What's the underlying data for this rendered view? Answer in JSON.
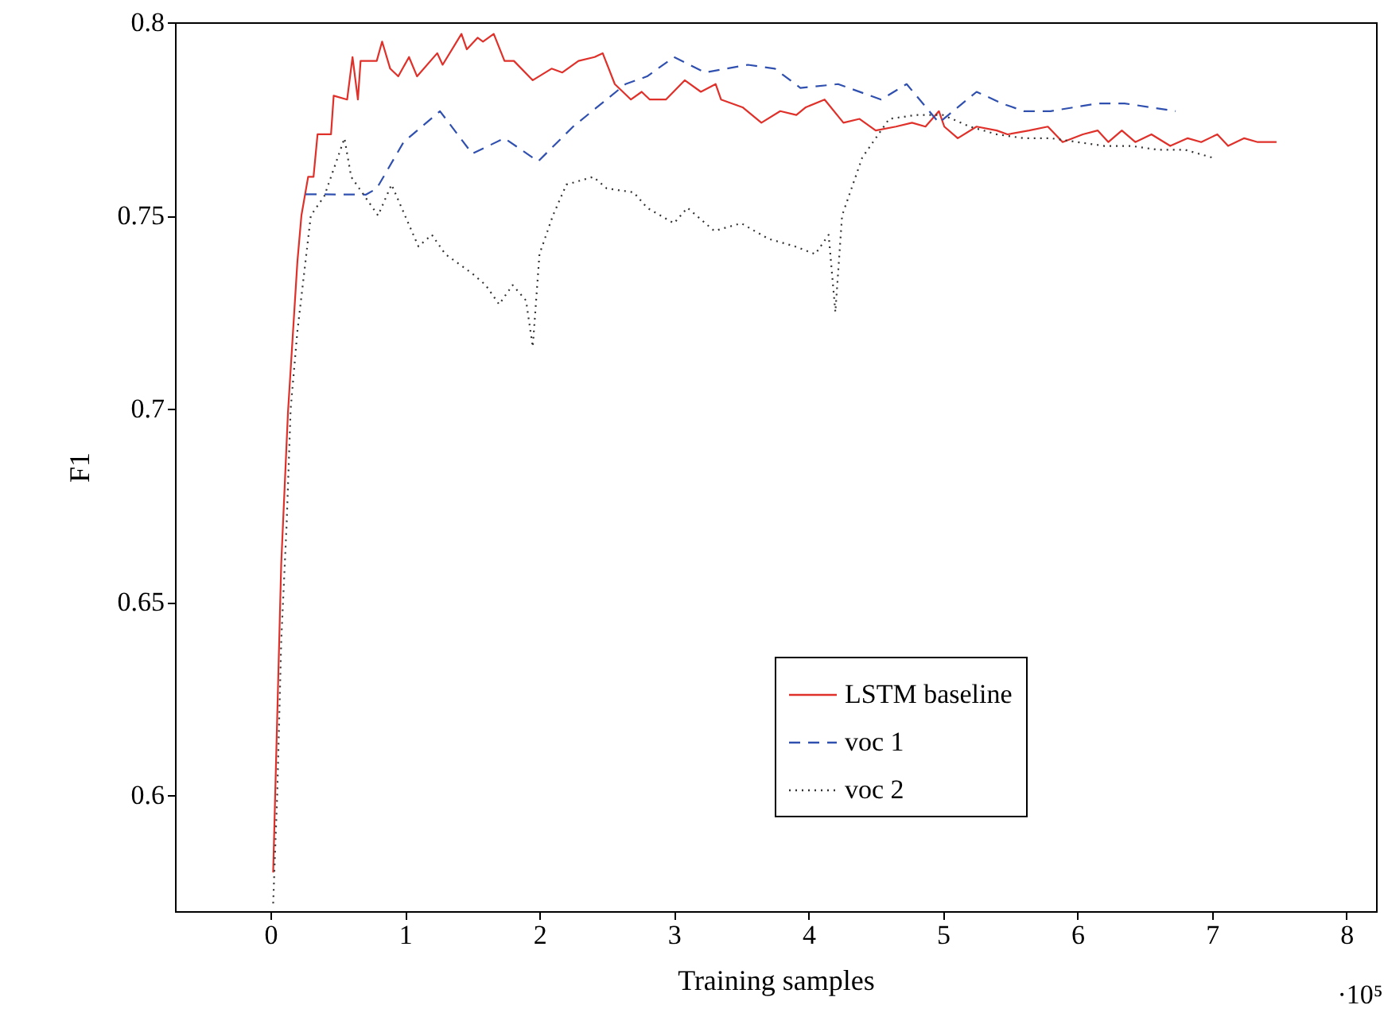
{
  "chart_data": {
    "type": "line",
    "xlabel": "Training samples",
    "ylabel": "F1",
    "xlim": [
      -0.71,
      8.22
    ],
    "ylim": [
      0.57,
      0.8
    ],
    "xticks": [
      0,
      1,
      2,
      3,
      4,
      5,
      6,
      7,
      8
    ],
    "yticks": [
      0.6,
      0.65,
      0.7,
      0.75,
      0.8
    ],
    "grid": false,
    "legend": "bottom right",
    "marker": "none",
    "annotations": [
      "·10⁵"
    ],
    "series": [
      {
        "name": "LSTM baseline",
        "color": "#e0302a",
        "line_style": "solid",
        "x": [
          0.02,
          0.05,
          0.08,
          0.13,
          0.2,
          0.23,
          0.28,
          0.32,
          0.35,
          0.45,
          0.47,
          0.57,
          0.61,
          0.65,
          0.67,
          0.79,
          0.83,
          0.89,
          0.95,
          1.03,
          1.09,
          1.24,
          1.28,
          1.42,
          1.46,
          1.54,
          1.58,
          1.66,
          1.74,
          1.81,
          1.95,
          2.09,
          2.17,
          2.29,
          2.41,
          2.47,
          2.56,
          2.68,
          2.76,
          2.82,
          2.94,
          3.08,
          3.2,
          3.31,
          3.35,
          3.51,
          3.65,
          3.79,
          3.91,
          3.98,
          4.12,
          4.26,
          4.38,
          4.5,
          4.65,
          4.77,
          4.87,
          4.97,
          5.01,
          5.11,
          5.25,
          5.4,
          5.48,
          5.64,
          5.78,
          5.89,
          6.04,
          6.15,
          6.23,
          6.33,
          6.43,
          6.55,
          6.69,
          6.82,
          6.92,
          7.04,
          7.12,
          7.24,
          7.34,
          7.48
        ],
        "values": [
          0.58,
          0.62,
          0.66,
          0.699,
          0.738,
          0.75,
          0.76,
          0.76,
          0.771,
          0.771,
          0.781,
          0.78,
          0.791,
          0.78,
          0.79,
          0.79,
          0.795,
          0.788,
          0.786,
          0.791,
          0.786,
          0.792,
          0.789,
          0.797,
          0.793,
          0.796,
          0.795,
          0.797,
          0.79,
          0.79,
          0.785,
          0.788,
          0.787,
          0.79,
          0.791,
          0.792,
          0.784,
          0.78,
          0.782,
          0.78,
          0.78,
          0.785,
          0.782,
          0.784,
          0.78,
          0.778,
          0.774,
          0.777,
          0.776,
          0.778,
          0.78,
          0.774,
          0.775,
          0.772,
          0.773,
          0.774,
          0.773,
          0.777,
          0.773,
          0.77,
          0.773,
          0.772,
          0.771,
          0.772,
          0.773,
          0.769,
          0.771,
          0.772,
          0.769,
          0.772,
          0.769,
          0.771,
          0.768,
          0.77,
          0.769,
          0.771,
          0.768,
          0.77,
          0.769,
          0.769
        ]
      },
      {
        "name": "voc 1",
        "color": "#3050b0",
        "line_style": "dashed",
        "x": [
          0.26,
          0.71,
          0.79,
          0.99,
          1.26,
          1.5,
          1.74,
          1.99,
          2.25,
          2.64,
          2.8,
          3.0,
          3.23,
          3.55,
          3.75,
          3.94,
          4.22,
          4.54,
          4.73,
          4.97,
          5.25,
          5.44,
          5.6,
          5.8,
          6.15,
          6.35,
          6.73
        ],
        "values": [
          0.7555,
          0.7554,
          0.757,
          0.769,
          0.777,
          0.766,
          0.77,
          0.764,
          0.773,
          0.784,
          0.786,
          0.791,
          0.787,
          0.789,
          0.788,
          0.783,
          0.784,
          0.78,
          0.784,
          0.774,
          0.782,
          0.779,
          0.777,
          0.777,
          0.779,
          0.779,
          0.777
        ]
      },
      {
        "name": "voc 2",
        "color": "#333333",
        "line_style": "dotted",
        "x": [
          0.02,
          0.05,
          0.08,
          0.12,
          0.15,
          0.2,
          0.3,
          0.4,
          0.5,
          0.55,
          0.6,
          0.7,
          0.8,
          0.9,
          1.0,
          1.1,
          1.2,
          1.3,
          1.5,
          1.6,
          1.7,
          1.8,
          1.9,
          1.95,
          2.0,
          2.1,
          2.2,
          2.4,
          2.5,
          2.7,
          2.8,
          3.0,
          3.1,
          3.3,
          3.5,
          3.7,
          3.9,
          4.05,
          4.15,
          4.2,
          4.25,
          4.4,
          4.6,
          4.8,
          5.0,
          5.2,
          5.4,
          5.6,
          5.8,
          6.0,
          6.2,
          6.4,
          6.6,
          6.8,
          7.0
        ],
        "values": [
          0.572,
          0.6,
          0.64,
          0.67,
          0.7,
          0.72,
          0.75,
          0.755,
          0.765,
          0.77,
          0.76,
          0.755,
          0.75,
          0.758,
          0.75,
          0.742,
          0.745,
          0.74,
          0.735,
          0.732,
          0.727,
          0.732,
          0.728,
          0.716,
          0.74,
          0.75,
          0.758,
          0.76,
          0.757,
          0.756,
          0.752,
          0.748,
          0.752,
          0.746,
          0.748,
          0.744,
          0.742,
          0.74,
          0.745,
          0.725,
          0.75,
          0.765,
          0.775,
          0.776,
          0.776,
          0.773,
          0.771,
          0.77,
          0.77,
          0.769,
          0.768,
          0.768,
          0.767,
          0.767,
          0.765
        ]
      }
    ]
  }
}
